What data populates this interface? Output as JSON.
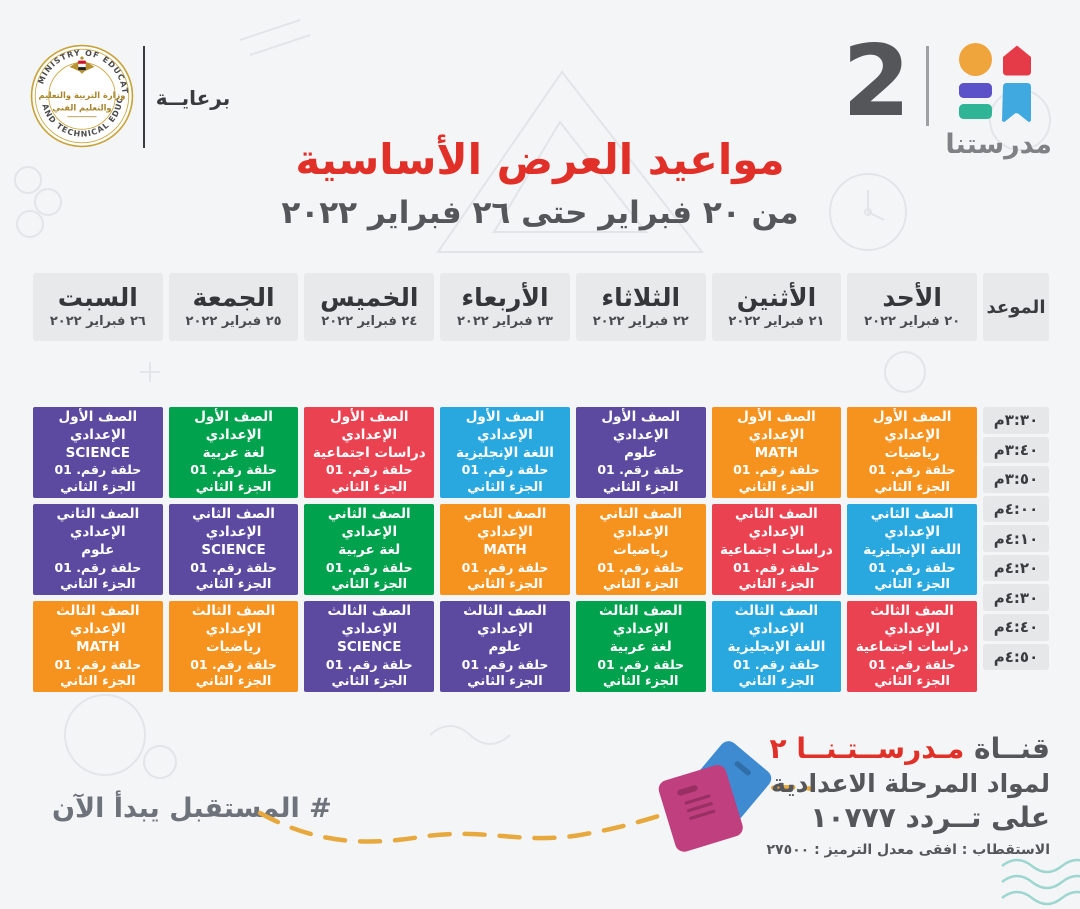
{
  "header": {
    "patronage_label": "برعايــة",
    "title": "مواعيد العرض الأساسية",
    "subtitle": "من ٢٠ فبراير حتى ٢٦ فبراير ٢٠٢٢",
    "ministry_emblem": {
      "ring_text_top": "MINISTRY OF EDUCATION",
      "ring_text_bottom": "AND TECHNICAL EDUCATION",
      "center_line1": "وزارة التربية والتعليم",
      "center_line2": "والتعليم الفني"
    },
    "channel_logo": {
      "number": "2",
      "name": "مدرستنا"
    }
  },
  "colors": {
    "orange": "#F6921E",
    "purple": "#5B4AA0",
    "blue": "#29A8E0",
    "red": "#EA4250",
    "green": "#00A24D",
    "title_red": "#E13028"
  },
  "schedule": {
    "time_header": "الموعد",
    "days": [
      {
        "name": "الأحد",
        "date": "٢٠ فبراير ٢٠٢٢"
      },
      {
        "name": "الأثنين",
        "date": "٢١ فبراير ٢٠٢٢"
      },
      {
        "name": "الثلاثاء",
        "date": "٢٢ فبراير ٢٠٢٢"
      },
      {
        "name": "الأربعاء",
        "date": "٢٣ فبراير ٢٠٢٢"
      },
      {
        "name": "الخميس",
        "date": "٢٤ فبراير ٢٠٢٢"
      },
      {
        "name": "الجمعة",
        "date": "٢٥ فبراير ٢٠٢٢"
      },
      {
        "name": "السبت",
        "date": "٢٦ فبراير ٢٠٢٢"
      }
    ],
    "times": [
      "٣:٣٠م",
      "٣:٤٠م",
      "٣:٥٠م",
      "٤:٠٠م",
      "٤:١٠م",
      "٤:٢٠م",
      "٤:٣٠م",
      "٤:٤٠م",
      "٤:٥٠م"
    ],
    "episode": "حلقة رقم. 01",
    "part": "الجزء الثاني",
    "rows": [
      {
        "grade": "الصف الأول الإعدادي",
        "cells": [
          {
            "subject": "رياضيات",
            "color": "orange"
          },
          {
            "subject": "MATH",
            "color": "orange"
          },
          {
            "subject": "علوم",
            "color": "purple"
          },
          {
            "subject": "اللغة الإنجليزية",
            "color": "blue"
          },
          {
            "subject": "دراسات اجتماعية",
            "color": "red"
          },
          {
            "subject": "لغة عربية",
            "color": "green"
          },
          {
            "subject": "SCIENCE",
            "color": "purple"
          }
        ]
      },
      {
        "grade": "الصف الثاني الإعدادي",
        "cells": [
          {
            "subject": "اللغة الإنجليزية",
            "color": "blue"
          },
          {
            "subject": "دراسات اجتماعية",
            "color": "red"
          },
          {
            "subject": "رياضيات",
            "color": "orange"
          },
          {
            "subject": "MATH",
            "color": "orange"
          },
          {
            "subject": "لغة عربية",
            "color": "green"
          },
          {
            "subject": "SCIENCE",
            "color": "purple"
          },
          {
            "subject": "علوم",
            "color": "purple"
          }
        ]
      },
      {
        "grade": "الصف الثالث الإعدادي",
        "cells": [
          {
            "subject": "دراسات اجتماعية",
            "color": "red"
          },
          {
            "subject": "اللغة الإنجليزية",
            "color": "blue"
          },
          {
            "subject": "لغة عربية",
            "color": "green"
          },
          {
            "subject": "علوم",
            "color": "purple"
          },
          {
            "subject": "SCIENCE",
            "color": "purple"
          },
          {
            "subject": "رياضيات",
            "color": "orange"
          },
          {
            "subject": "MATH",
            "color": "orange"
          }
        ]
      }
    ]
  },
  "footer": {
    "hashtag": "# المستقبل يبدأ الآن",
    "channel_line_prefix": "قنــاة",
    "channel_line_name": "مـدرســتـنــا ٢",
    "line2": "لمواد المرحلة الاعدادية",
    "line3": "على تــردد ١٠٧٧٧",
    "line4": "الاستقطاب : افقى معدل الترميز : ٢٧٥٠٠"
  }
}
